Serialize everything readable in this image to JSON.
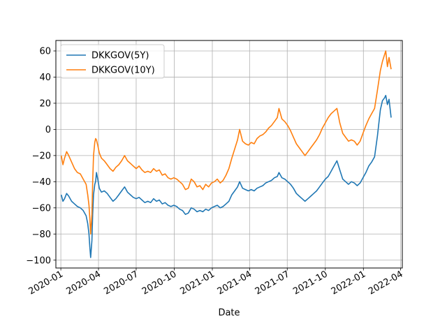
{
  "chart_data": {
    "type": "line",
    "title": "",
    "xlabel": "Date",
    "ylabel": "",
    "grid": true,
    "legend_position": "top-left",
    "xlim": [
      "2019-12-20",
      "2022-04-05"
    ],
    "ylim": [
      -106,
      68
    ],
    "x_ticks": [
      "2020-01",
      "2020-04",
      "2020-07",
      "2020-10",
      "2021-01",
      "2021-04",
      "2021-07",
      "2021-10",
      "2022-01",
      "2022-04"
    ],
    "x_tick_dates": [
      "2020-01-01",
      "2020-04-01",
      "2020-07-01",
      "2020-10-01",
      "2021-01-01",
      "2021-04-01",
      "2021-07-01",
      "2021-10-01",
      "2022-01-01",
      "2022-04-01"
    ],
    "y_ticks": [
      -100,
      -80,
      -60,
      -40,
      -20,
      0,
      20,
      40,
      60
    ],
    "series": [
      {
        "name": "DKKGOV(5Y)",
        "color": "#1f77b4",
        "points": [
          [
            "2020-01-02",
            -50
          ],
          [
            "2020-01-06",
            -55
          ],
          [
            "2020-01-10",
            -53
          ],
          [
            "2020-01-15",
            -49
          ],
          [
            "2020-01-20",
            -51
          ],
          [
            "2020-01-27",
            -55
          ],
          [
            "2020-02-03",
            -57
          ],
          [
            "2020-02-10",
            -59
          ],
          [
            "2020-02-17",
            -60
          ],
          [
            "2020-02-24",
            -62
          ],
          [
            "2020-03-02",
            -66
          ],
          [
            "2020-03-06",
            -72
          ],
          [
            "2020-03-09",
            -80
          ],
          [
            "2020-03-11",
            -90
          ],
          [
            "2020-03-13",
            -98
          ],
          [
            "2020-03-16",
            -85
          ],
          [
            "2020-03-18",
            -65
          ],
          [
            "2020-03-20",
            -50
          ],
          [
            "2020-03-23",
            -42
          ],
          [
            "2020-03-25",
            -40
          ],
          [
            "2020-03-27",
            -33
          ],
          [
            "2020-03-30",
            -38
          ],
          [
            "2020-04-03",
            -45
          ],
          [
            "2020-04-08",
            -48
          ],
          [
            "2020-04-15",
            -47
          ],
          [
            "2020-04-22",
            -49
          ],
          [
            "2020-04-29",
            -52
          ],
          [
            "2020-05-06",
            -55
          ],
          [
            "2020-05-13",
            -53
          ],
          [
            "2020-05-20",
            -50
          ],
          [
            "2020-05-27",
            -47
          ],
          [
            "2020-06-03",
            -44
          ],
          [
            "2020-06-10",
            -48
          ],
          [
            "2020-06-17",
            -50
          ],
          [
            "2020-06-24",
            -52
          ],
          [
            "2020-07-01",
            -53
          ],
          [
            "2020-07-08",
            -52
          ],
          [
            "2020-07-15",
            -54
          ],
          [
            "2020-07-22",
            -56
          ],
          [
            "2020-07-29",
            -55
          ],
          [
            "2020-08-05",
            -56
          ],
          [
            "2020-08-12",
            -53
          ],
          [
            "2020-08-19",
            -55
          ],
          [
            "2020-08-26",
            -54
          ],
          [
            "2020-09-02",
            -57
          ],
          [
            "2020-09-09",
            -56
          ],
          [
            "2020-09-16",
            -58
          ],
          [
            "2020-09-23",
            -59
          ],
          [
            "2020-09-30",
            -58
          ],
          [
            "2020-10-07",
            -59
          ],
          [
            "2020-10-14",
            -61
          ],
          [
            "2020-10-21",
            -62
          ],
          [
            "2020-10-28",
            -65
          ],
          [
            "2020-11-04",
            -64
          ],
          [
            "2020-11-11",
            -60
          ],
          [
            "2020-11-18",
            -61
          ],
          [
            "2020-11-25",
            -63
          ],
          [
            "2020-12-02",
            -62
          ],
          [
            "2020-12-09",
            -63
          ],
          [
            "2020-12-16",
            -61
          ],
          [
            "2020-12-23",
            -62
          ],
          [
            "2020-12-30",
            -60
          ],
          [
            "2021-01-06",
            -59
          ],
          [
            "2021-01-13",
            -58
          ],
          [
            "2021-01-20",
            -60
          ],
          [
            "2021-01-27",
            -59
          ],
          [
            "2021-02-03",
            -57
          ],
          [
            "2021-02-10",
            -55
          ],
          [
            "2021-02-17",
            -50
          ],
          [
            "2021-02-24",
            -47
          ],
          [
            "2021-03-03",
            -44
          ],
          [
            "2021-03-08",
            -40
          ],
          [
            "2021-03-15",
            -45
          ],
          [
            "2021-03-22",
            -46
          ],
          [
            "2021-03-29",
            -47
          ],
          [
            "2021-04-05",
            -46
          ],
          [
            "2021-04-12",
            -47
          ],
          [
            "2021-04-19",
            -45
          ],
          [
            "2021-04-26",
            -44
          ],
          [
            "2021-05-03",
            -43
          ],
          [
            "2021-05-10",
            -41
          ],
          [
            "2021-05-17",
            -40
          ],
          [
            "2021-05-24",
            -39
          ],
          [
            "2021-05-31",
            -37
          ],
          [
            "2021-06-07",
            -36
          ],
          [
            "2021-06-11",
            -33
          ],
          [
            "2021-06-18",
            -37
          ],
          [
            "2021-06-25",
            -38
          ],
          [
            "2021-07-02",
            -40
          ],
          [
            "2021-07-09",
            -42
          ],
          [
            "2021-07-16",
            -45
          ],
          [
            "2021-07-23",
            -49
          ],
          [
            "2021-07-30",
            -51
          ],
          [
            "2021-08-06",
            -53
          ],
          [
            "2021-08-13",
            -55
          ],
          [
            "2021-08-20",
            -53
          ],
          [
            "2021-08-27",
            -51
          ],
          [
            "2021-09-03",
            -49
          ],
          [
            "2021-09-10",
            -47
          ],
          [
            "2021-09-17",
            -44
          ],
          [
            "2021-09-24",
            -41
          ],
          [
            "2021-10-01",
            -38
          ],
          [
            "2021-10-08",
            -36
          ],
          [
            "2021-10-15",
            -32
          ],
          [
            "2021-10-22",
            -28
          ],
          [
            "2021-10-29",
            -24
          ],
          [
            "2021-11-05",
            -31
          ],
          [
            "2021-11-12",
            -38
          ],
          [
            "2021-11-19",
            -40
          ],
          [
            "2021-11-26",
            -42
          ],
          [
            "2021-12-03",
            -40
          ],
          [
            "2021-12-10",
            -41
          ],
          [
            "2021-12-17",
            -43
          ],
          [
            "2021-12-24",
            -41
          ],
          [
            "2021-12-31",
            -37
          ],
          [
            "2022-01-07",
            -33
          ],
          [
            "2022-01-14",
            -28
          ],
          [
            "2022-01-21",
            -25
          ],
          [
            "2022-01-28",
            -21
          ],
          [
            "2022-02-04",
            -5
          ],
          [
            "2022-02-11",
            15
          ],
          [
            "2022-02-16",
            22
          ],
          [
            "2022-02-21",
            24
          ],
          [
            "2022-02-24",
            26
          ],
          [
            "2022-02-28",
            19
          ],
          [
            "2022-03-04",
            23
          ],
          [
            "2022-03-09",
            9
          ]
        ]
      },
      {
        "name": "DKKGOV(10Y)",
        "color": "#ff7f0e",
        "points": [
          [
            "2020-01-02",
            -20
          ],
          [
            "2020-01-06",
            -27
          ],
          [
            "2020-01-10",
            -22
          ],
          [
            "2020-01-15",
            -17
          ],
          [
            "2020-01-20",
            -20
          ],
          [
            "2020-01-27",
            -25
          ],
          [
            "2020-02-03",
            -30
          ],
          [
            "2020-02-10",
            -33
          ],
          [
            "2020-02-17",
            -34
          ],
          [
            "2020-02-24",
            -38
          ],
          [
            "2020-03-02",
            -42
          ],
          [
            "2020-03-06",
            -50
          ],
          [
            "2020-03-09",
            -58
          ],
          [
            "2020-03-11",
            -68
          ],
          [
            "2020-03-13",
            -80
          ],
          [
            "2020-03-16",
            -65
          ],
          [
            "2020-03-18",
            -40
          ],
          [
            "2020-03-20",
            -20
          ],
          [
            "2020-03-23",
            -10
          ],
          [
            "2020-03-25",
            -7
          ],
          [
            "2020-03-27",
            -8
          ],
          [
            "2020-03-30",
            -12
          ],
          [
            "2020-04-03",
            -18
          ],
          [
            "2020-04-08",
            -22
          ],
          [
            "2020-04-15",
            -24
          ],
          [
            "2020-04-22",
            -27
          ],
          [
            "2020-04-29",
            -30
          ],
          [
            "2020-05-06",
            -32
          ],
          [
            "2020-05-13",
            -29
          ],
          [
            "2020-05-20",
            -27
          ],
          [
            "2020-05-27",
            -24
          ],
          [
            "2020-06-03",
            -20
          ],
          [
            "2020-06-10",
            -24
          ],
          [
            "2020-06-17",
            -26
          ],
          [
            "2020-06-24",
            -28
          ],
          [
            "2020-07-01",
            -30
          ],
          [
            "2020-07-08",
            -28
          ],
          [
            "2020-07-15",
            -31
          ],
          [
            "2020-07-22",
            -33
          ],
          [
            "2020-07-29",
            -32
          ],
          [
            "2020-08-05",
            -33
          ],
          [
            "2020-08-12",
            -30
          ],
          [
            "2020-08-19",
            -32
          ],
          [
            "2020-08-26",
            -31
          ],
          [
            "2020-09-02",
            -35
          ],
          [
            "2020-09-09",
            -34
          ],
          [
            "2020-09-16",
            -37
          ],
          [
            "2020-09-23",
            -38
          ],
          [
            "2020-09-30",
            -37
          ],
          [
            "2020-10-07",
            -38
          ],
          [
            "2020-10-14",
            -40
          ],
          [
            "2020-10-21",
            -42
          ],
          [
            "2020-10-28",
            -46
          ],
          [
            "2020-11-04",
            -45
          ],
          [
            "2020-11-11",
            -38
          ],
          [
            "2020-11-18",
            -40
          ],
          [
            "2020-11-25",
            -44
          ],
          [
            "2020-12-02",
            -43
          ],
          [
            "2020-12-09",
            -46
          ],
          [
            "2020-12-16",
            -42
          ],
          [
            "2020-12-23",
            -44
          ],
          [
            "2020-12-30",
            -41
          ],
          [
            "2021-01-06",
            -40
          ],
          [
            "2021-01-13",
            -38
          ],
          [
            "2021-01-20",
            -41
          ],
          [
            "2021-01-27",
            -39
          ],
          [
            "2021-02-03",
            -35
          ],
          [
            "2021-02-10",
            -30
          ],
          [
            "2021-02-17",
            -22
          ],
          [
            "2021-02-24",
            -15
          ],
          [
            "2021-03-03",
            -8
          ],
          [
            "2021-03-08",
            0
          ],
          [
            "2021-03-15",
            -9
          ],
          [
            "2021-03-22",
            -11
          ],
          [
            "2021-03-29",
            -12
          ],
          [
            "2021-04-05",
            -10
          ],
          [
            "2021-04-12",
            -11
          ],
          [
            "2021-04-19",
            -7
          ],
          [
            "2021-04-26",
            -5
          ],
          [
            "2021-05-03",
            -4
          ],
          [
            "2021-05-10",
            -2
          ],
          [
            "2021-05-17",
            1
          ],
          [
            "2021-05-24",
            3
          ],
          [
            "2021-05-31",
            6
          ],
          [
            "2021-06-07",
            9
          ],
          [
            "2021-06-11",
            16
          ],
          [
            "2021-06-18",
            8
          ],
          [
            "2021-06-25",
            6
          ],
          [
            "2021-07-02",
            3
          ],
          [
            "2021-07-09",
            -1
          ],
          [
            "2021-07-16",
            -6
          ],
          [
            "2021-07-23",
            -11
          ],
          [
            "2021-07-30",
            -14
          ],
          [
            "2021-08-06",
            -17
          ],
          [
            "2021-08-13",
            -20
          ],
          [
            "2021-08-20",
            -17
          ],
          [
            "2021-08-27",
            -14
          ],
          [
            "2021-09-03",
            -11
          ],
          [
            "2021-09-10",
            -8
          ],
          [
            "2021-09-17",
            -4
          ],
          [
            "2021-09-24",
            1
          ],
          [
            "2021-10-01",
            5
          ],
          [
            "2021-10-08",
            9
          ],
          [
            "2021-10-15",
            12
          ],
          [
            "2021-10-22",
            14
          ],
          [
            "2021-10-29",
            16
          ],
          [
            "2021-11-05",
            5
          ],
          [
            "2021-11-12",
            -3
          ],
          [
            "2021-11-19",
            -6
          ],
          [
            "2021-11-26",
            -9
          ],
          [
            "2021-12-03",
            -8
          ],
          [
            "2021-12-10",
            -9
          ],
          [
            "2021-12-17",
            -12
          ],
          [
            "2021-12-24",
            -9
          ],
          [
            "2021-12-31",
            -3
          ],
          [
            "2022-01-07",
            3
          ],
          [
            "2022-01-14",
            8
          ],
          [
            "2022-01-21",
            12
          ],
          [
            "2022-01-28",
            16
          ],
          [
            "2022-02-04",
            30
          ],
          [
            "2022-02-11",
            45
          ],
          [
            "2022-02-16",
            52
          ],
          [
            "2022-02-21",
            57
          ],
          [
            "2022-02-24",
            60
          ],
          [
            "2022-02-28",
            48
          ],
          [
            "2022-03-04",
            55
          ],
          [
            "2022-03-09",
            46
          ]
        ]
      }
    ]
  }
}
